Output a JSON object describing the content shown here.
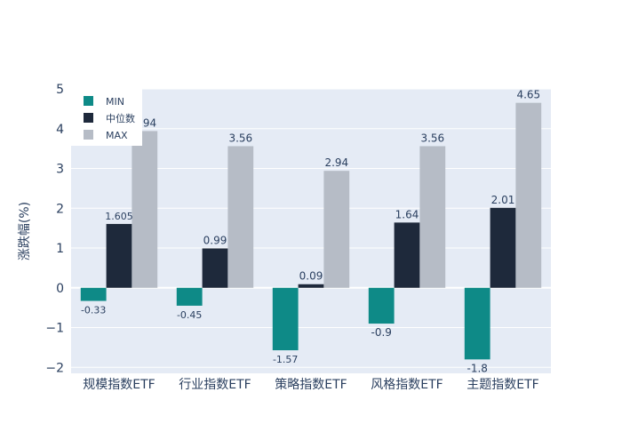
{
  "chart_data": {
    "type": "bar",
    "title": "",
    "xlabel": "",
    "ylabel": "涨跌幅(%)",
    "categories": [
      "规模指数ETF",
      "行业指数ETF",
      "策略指数ETF",
      "风格指数ETF",
      "主题指数ETF"
    ],
    "series": [
      {
        "name": "MIN",
        "values": [
          -0.33,
          -0.45,
          -1.57,
          -0.9,
          -1.8
        ],
        "labels": [
          "-0.33",
          "-0.45",
          "-1.57",
          "-0.9",
          "-1.8"
        ],
        "color": "#0e8a87"
      },
      {
        "name": "中位数",
        "values": [
          1.605,
          0.99,
          0.09,
          1.64,
          2.01
        ],
        "labels": [
          "1.605",
          "0.99",
          "0.09",
          "1.64",
          "2.01"
        ],
        "color": "#1e293b"
      },
      {
        "name": "MAX",
        "values": [
          3.94,
          3.56,
          2.94,
          3.56,
          4.65
        ],
        "labels": [
          "3.94",
          "3.56",
          "2.94",
          "3.56",
          "4.65"
        ],
        "color": "#b6bcc6"
      }
    ],
    "ylim": [
      -2.15,
      5
    ],
    "yticks": [
      5,
      4,
      3,
      2,
      1,
      0,
      -1,
      -2
    ],
    "ytick_labels": [
      "5",
      "4",
      "3",
      "2",
      "1",
      "0",
      "−1",
      "−2"
    ],
    "grid": true,
    "legend_position": "top-left",
    "plot_background": "#e5ebf5",
    "text_color": "#2a3f5f"
  }
}
